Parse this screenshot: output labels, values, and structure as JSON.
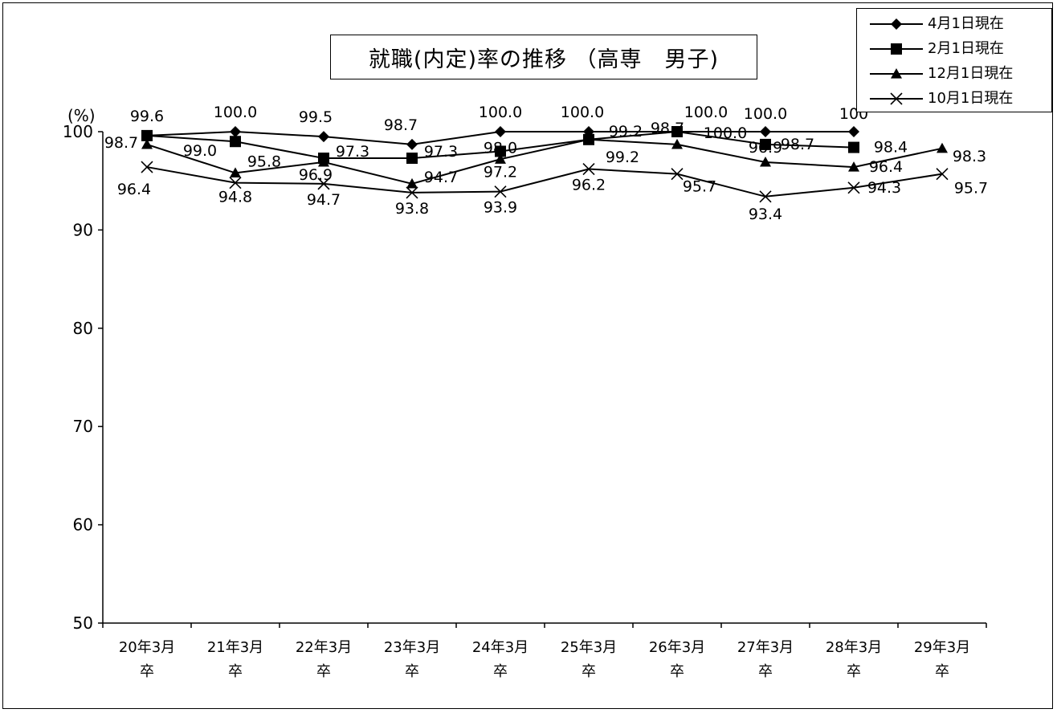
{
  "chart_data": {
    "type": "line",
    "title": "就職(内定)率の推移 （高専　男子)",
    "ylabel": "(%)",
    "ylim": [
      50,
      100
    ],
    "yticks": [
      50,
      60,
      70,
      80,
      90,
      100
    ],
    "categories": [
      [
        "20年3月",
        "卒"
      ],
      [
        "21年3月",
        "卒"
      ],
      [
        "22年3月",
        "卒"
      ],
      [
        "23年3月",
        "卒"
      ],
      [
        "24年3月",
        "卒"
      ],
      [
        "25年3月",
        "卒"
      ],
      [
        "26年3月",
        "卒"
      ],
      [
        "27年3月",
        "卒"
      ],
      [
        "28年3月",
        "卒"
      ],
      [
        "29年3月",
        "卒"
      ]
    ],
    "legend_position": "top-right",
    "grid": false,
    "series": [
      {
        "name": "4月1日現在",
        "marker": "diamond",
        "color": "#000000",
        "values": [
          99.6,
          100.0,
          99.5,
          98.7,
          100.0,
          100.0,
          100.0,
          100.0,
          100,
          null
        ],
        "labels": [
          "99.6",
          "100.0",
          "99.5",
          "98.7",
          "100.0",
          "100.0",
          "100.0",
          "100.0",
          "100",
          ""
        ]
      },
      {
        "name": "2月1日現在",
        "marker": "square",
        "color": "#000000",
        "values": [
          99.6,
          99.0,
          97.3,
          97.3,
          98.0,
          99.2,
          100.0,
          98.7,
          98.4,
          null
        ],
        "labels": [
          "",
          "99.0",
          "97.3",
          "97.3",
          "98.0",
          "99.2",
          "100.0",
          "98.7",
          "98.4",
          ""
        ]
      },
      {
        "name": "12月1日現在",
        "marker": "triangle",
        "color": "#000000",
        "values": [
          98.7,
          95.8,
          96.9,
          94.7,
          97.2,
          99.2,
          98.7,
          96.9,
          96.4,
          98.3
        ],
        "labels": [
          "98.7",
          "95.8",
          "96.9",
          "94.7",
          "97.2",
          "99.2",
          "98.7",
          "96.9",
          "96.4",
          "98.3"
        ]
      },
      {
        "name": "10月1日現在",
        "marker": "x",
        "color": "#000000",
        "values": [
          96.4,
          94.8,
          94.7,
          93.8,
          93.9,
          96.2,
          95.7,
          93.4,
          94.3,
          95.7
        ],
        "labels": [
          "96.4",
          "94.8",
          "94.7",
          "93.8",
          "93.9",
          "96.2",
          "95.7",
          "93.4",
          "94.3",
          "95.7"
        ]
      }
    ]
  }
}
